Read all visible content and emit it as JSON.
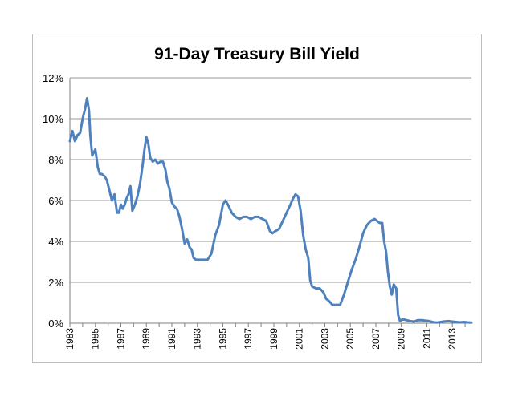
{
  "chart_data": {
    "type": "line",
    "title": "91-Day Treasury Bill Yield",
    "xlabel": "",
    "ylabel": "",
    "ylim": [
      0,
      12
    ],
    "y_ticks": [
      "0%",
      "2%",
      "4%",
      "6%",
      "8%",
      "10%",
      "12%"
    ],
    "x_range": [
      1983.0,
      2014.5
    ],
    "x_ticks": [
      "1983",
      "1985",
      "1987",
      "1989",
      "1991",
      "1993",
      "1995",
      "1997",
      "1999",
      "2001",
      "2003",
      "2005",
      "2007",
      "2009",
      "2011",
      "2013"
    ],
    "grid": "horizontal",
    "line_color": "#4f81bd",
    "series": [
      {
        "x": [
          1983.0,
          1983.2,
          1983.4,
          1983.6,
          1983.8,
          1984.0,
          1984.2,
          1984.35,
          1984.5,
          1984.6,
          1984.75,
          1985.0,
          1985.2,
          1985.35,
          1985.5,
          1985.7,
          1985.9,
          1986.1,
          1986.3,
          1986.5,
          1986.7,
          1986.85,
          1987.0,
          1987.15,
          1987.3,
          1987.45,
          1987.6,
          1987.75,
          1987.9,
          1988.1,
          1988.3,
          1988.5,
          1988.7,
          1988.85,
          1989.0,
          1989.15,
          1989.3,
          1989.5,
          1989.7,
          1989.9,
          1990.1,
          1990.3,
          1990.5,
          1990.65,
          1990.8,
          1991.0,
          1991.2,
          1991.4,
          1991.6,
          1991.8,
          1992.0,
          1992.2,
          1992.4,
          1992.55,
          1992.7,
          1992.9,
          1993.2,
          1993.5,
          1993.8,
          1994.1,
          1994.4,
          1994.7,
          1995.0,
          1995.2,
          1995.4,
          1995.7,
          1996.0,
          1996.3,
          1996.6,
          1996.9,
          1997.2,
          1997.5,
          1997.8,
          1998.1,
          1998.4,
          1998.7,
          1998.9,
          1999.1,
          1999.4,
          1999.7,
          2000.0,
          2000.3,
          2000.5,
          2000.7,
          2000.9,
          2001.1,
          2001.3,
          2001.5,
          2001.7,
          2001.85,
          2002.0,
          2002.3,
          2002.6,
          2002.9,
          2003.1,
          2003.3,
          2003.6,
          2003.9,
          2004.2,
          2004.5,
          2004.8,
          2005.1,
          2005.4,
          2005.7,
          2006.0,
          2006.3,
          2006.6,
          2006.9,
          2007.1,
          2007.3,
          2007.5,
          2007.65,
          2007.8,
          2007.95,
          2008.1,
          2008.25,
          2008.4,
          2008.6,
          2008.75,
          2008.9,
          2009.1,
          2009.4,
          2009.7,
          2010.0,
          2010.3,
          2010.6,
          2010.9,
          2011.2,
          2011.5,
          2011.8,
          2012.1,
          2012.4,
          2012.7,
          2013.0,
          2013.3,
          2013.6,
          2013.9,
          2014.2,
          2014.5
        ],
        "values": [
          8.9,
          9.4,
          8.9,
          9.2,
          9.3,
          10.0,
          10.5,
          11.0,
          10.4,
          9.2,
          8.2,
          8.5,
          7.6,
          7.3,
          7.3,
          7.2,
          7.0,
          6.5,
          6.0,
          6.3,
          5.4,
          5.4,
          5.8,
          5.6,
          5.8,
          6.1,
          6.3,
          6.7,
          5.5,
          5.8,
          6.2,
          6.8,
          7.7,
          8.5,
          9.1,
          8.8,
          8.1,
          7.9,
          8.0,
          7.8,
          7.9,
          7.9,
          7.5,
          6.9,
          6.6,
          5.9,
          5.7,
          5.6,
          5.2,
          4.6,
          3.9,
          4.1,
          3.7,
          3.6,
          3.2,
          3.1,
          3.1,
          3.1,
          3.1,
          3.4,
          4.3,
          4.8,
          5.8,
          6.0,
          5.8,
          5.4,
          5.2,
          5.1,
          5.2,
          5.2,
          5.1,
          5.2,
          5.2,
          5.1,
          5.0,
          4.5,
          4.4,
          4.5,
          4.6,
          5.0,
          5.4,
          5.8,
          6.1,
          6.3,
          6.2,
          5.5,
          4.3,
          3.6,
          3.2,
          2.1,
          1.8,
          1.7,
          1.7,
          1.5,
          1.2,
          1.1,
          0.9,
          0.9,
          0.9,
          1.4,
          2.0,
          2.6,
          3.1,
          3.7,
          4.4,
          4.8,
          5.0,
          5.1,
          5.0,
          4.9,
          4.9,
          4.0,
          3.5,
          2.5,
          1.8,
          1.4,
          1.9,
          1.7,
          0.4,
          0.1,
          0.2,
          0.15,
          0.1,
          0.08,
          0.15,
          0.15,
          0.12,
          0.1,
          0.05,
          0.03,
          0.06,
          0.09,
          0.1,
          0.08,
          0.06,
          0.04,
          0.06,
          0.04,
          0.03
        ]
      }
    ]
  }
}
